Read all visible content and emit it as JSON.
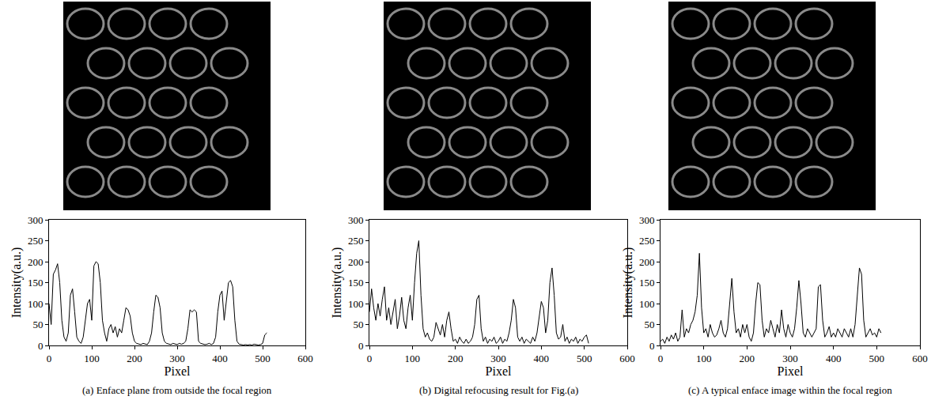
{
  "chart_data": [
    {
      "type": "line",
      "title": "(a) Enface plane from outside the focal region",
      "x_label": "Pixel",
      "y_label": "Intensity(a.u.)",
      "color": "#000000",
      "xlim": [
        0,
        600
      ],
      "xticks": [
        0,
        100,
        200,
        300,
        400,
        500,
        600
      ],
      "ylim": [
        0,
        300
      ],
      "yticks": [
        0,
        50,
        100,
        150,
        200,
        250,
        300
      ],
      "x": [
        0,
        5,
        10,
        15,
        20,
        25,
        30,
        35,
        40,
        45,
        50,
        55,
        60,
        65,
        70,
        75,
        80,
        85,
        90,
        95,
        100,
        105,
        110,
        115,
        120,
        125,
        130,
        135,
        140,
        145,
        150,
        155,
        160,
        165,
        170,
        175,
        180,
        185,
        190,
        195,
        200,
        205,
        210,
        215,
        220,
        225,
        230,
        235,
        240,
        245,
        250,
        255,
        260,
        265,
        270,
        275,
        280,
        285,
        290,
        295,
        300,
        305,
        310,
        315,
        320,
        325,
        330,
        335,
        340,
        345,
        350,
        355,
        360,
        365,
        370,
        375,
        380,
        385,
        390,
        395,
        400,
        405,
        410,
        415,
        420,
        425,
        430,
        435,
        440,
        445,
        450,
        455,
        460,
        465,
        470,
        475,
        480,
        485,
        490,
        495,
        500,
        505,
        510
      ],
      "values": [
        100,
        50,
        170,
        180,
        195,
        150,
        60,
        20,
        10,
        30,
        120,
        135,
        80,
        20,
        10,
        5,
        20,
        60,
        100,
        110,
        60,
        190,
        200,
        195,
        150,
        60,
        30,
        10,
        40,
        50,
        30,
        45,
        20,
        40,
        30,
        60,
        90,
        85,
        70,
        30,
        10,
        5,
        3,
        2,
        5,
        3,
        2,
        10,
        30,
        80,
        120,
        115,
        90,
        30,
        10,
        5,
        3,
        2,
        5,
        3,
        2,
        5,
        3,
        5,
        10,
        40,
        85,
        80,
        85,
        80,
        10,
        5,
        3,
        2,
        3,
        5,
        2,
        5,
        20,
        80,
        120,
        130,
        60,
        100,
        150,
        155,
        140,
        60,
        10,
        3,
        2,
        1,
        2,
        1,
        2,
        1,
        3,
        2,
        1,
        2,
        5,
        25,
        30
      ]
    },
    {
      "type": "line",
      "title": "(b) Digital refocusing result for Fig.(a)",
      "x_label": "Pixel",
      "y_label": "Intensity(a.u.)",
      "color": "#000000",
      "xlim": [
        0,
        600
      ],
      "xticks": [
        0,
        100,
        200,
        300,
        400,
        500,
        600
      ],
      "ylim": [
        0,
        300
      ],
      "yticks": [
        0,
        50,
        100,
        150,
        200,
        250,
        300
      ],
      "x": [
        0,
        5,
        10,
        15,
        20,
        25,
        30,
        35,
        40,
        45,
        50,
        55,
        60,
        65,
        70,
        75,
        80,
        85,
        90,
        95,
        100,
        105,
        110,
        115,
        120,
        125,
        130,
        135,
        140,
        145,
        150,
        155,
        160,
        165,
        170,
        175,
        180,
        185,
        190,
        195,
        200,
        205,
        210,
        215,
        220,
        225,
        230,
        235,
        240,
        245,
        250,
        255,
        260,
        265,
        270,
        275,
        280,
        285,
        290,
        295,
        300,
        305,
        310,
        315,
        320,
        325,
        330,
        335,
        340,
        345,
        350,
        355,
        360,
        365,
        370,
        375,
        380,
        385,
        390,
        395,
        400,
        405,
        410,
        415,
        420,
        425,
        430,
        435,
        440,
        445,
        450,
        455,
        460,
        465,
        470,
        475,
        480,
        485,
        490,
        495,
        500,
        505,
        510
      ],
      "values": [
        80,
        135,
        90,
        60,
        100,
        70,
        110,
        140,
        60,
        90,
        50,
        80,
        110,
        40,
        70,
        115,
        60,
        40,
        90,
        120,
        60,
        150,
        220,
        250,
        120,
        40,
        20,
        30,
        15,
        10,
        20,
        55,
        40,
        25,
        50,
        20,
        60,
        80,
        40,
        10,
        15,
        5,
        20,
        10,
        5,
        15,
        5,
        10,
        20,
        50,
        110,
        120,
        40,
        10,
        20,
        5,
        15,
        10,
        20,
        5,
        10,
        20,
        5,
        15,
        10,
        30,
        60,
        110,
        90,
        20,
        10,
        20,
        5,
        15,
        10,
        5,
        20,
        10,
        30,
        70,
        105,
        90,
        30,
        60,
        150,
        185,
        120,
        30,
        15,
        20,
        50,
        10,
        20,
        5,
        15,
        10,
        20,
        5,
        15,
        10,
        20,
        25,
        5
      ]
    },
    {
      "type": "line",
      "title": "(c) A typical enface image within the focal region",
      "x_label": "Pixel",
      "y_label": "Intensity(a.u.)",
      "color": "#000000",
      "xlim": [
        0,
        600
      ],
      "xticks": [
        0,
        100,
        200,
        300,
        400,
        500,
        600
      ],
      "ylim": [
        0,
        300
      ],
      "yticks": [
        0,
        50,
        100,
        150,
        200,
        250,
        300
      ],
      "x": [
        0,
        5,
        10,
        15,
        20,
        25,
        30,
        35,
        40,
        45,
        50,
        55,
        60,
        65,
        70,
        75,
        80,
        85,
        90,
        95,
        100,
        105,
        110,
        115,
        120,
        125,
        130,
        135,
        140,
        145,
        150,
        155,
        160,
        165,
        170,
        175,
        180,
        185,
        190,
        195,
        200,
        205,
        210,
        215,
        220,
        225,
        230,
        235,
        240,
        245,
        250,
        255,
        260,
        265,
        270,
        275,
        280,
        285,
        290,
        295,
        300,
        305,
        310,
        315,
        320,
        325,
        330,
        335,
        340,
        345,
        350,
        355,
        360,
        365,
        370,
        375,
        380,
        385,
        390,
        395,
        400,
        405,
        410,
        415,
        420,
        425,
        430,
        435,
        440,
        445,
        450,
        455,
        460,
        465,
        470,
        475,
        480,
        485,
        490,
        495,
        500,
        505,
        510
      ],
      "values": [
        10,
        15,
        5,
        20,
        10,
        25,
        15,
        30,
        10,
        20,
        85,
        20,
        40,
        30,
        50,
        60,
        80,
        120,
        220,
        90,
        30,
        40,
        20,
        50,
        30,
        20,
        25,
        40,
        60,
        30,
        20,
        40,
        100,
        160,
        80,
        30,
        40,
        20,
        50,
        30,
        50,
        20,
        10,
        30,
        100,
        150,
        145,
        60,
        20,
        40,
        30,
        60,
        40,
        20,
        50,
        30,
        85,
        40,
        20,
        50,
        30,
        20,
        40,
        90,
        155,
        100,
        30,
        20,
        40,
        30,
        20,
        30,
        40,
        140,
        145,
        60,
        20,
        30,
        45,
        20,
        30,
        20,
        40,
        30,
        20,
        40,
        30,
        20,
        40,
        20,
        50,
        120,
        185,
        170,
        60,
        20,
        30,
        40,
        25,
        30,
        20,
        40,
        30
      ]
    }
  ]
}
